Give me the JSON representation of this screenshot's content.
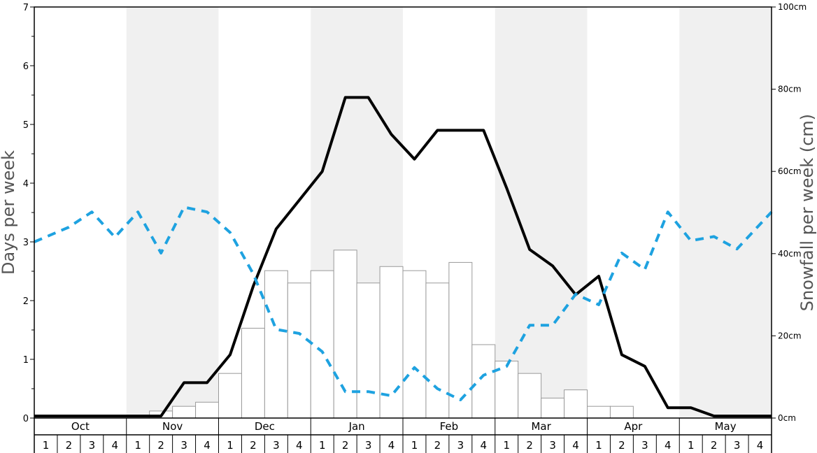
{
  "chart_data": {
    "type": "bar",
    "ylabel_left": "Days per week",
    "ylabel_right": "Snowfall per week (cm)",
    "left_axis": {
      "range": [
        0,
        7
      ],
      "ticks": [
        0,
        1,
        2,
        3,
        4,
        5,
        6,
        7
      ]
    },
    "right_axis": {
      "range": [
        0,
        100
      ],
      "tick_values": [
        0,
        20,
        40,
        60,
        80,
        100
      ],
      "tick_labels": [
        "0cm",
        "20cm",
        "40cm",
        "60cm",
        "80cm",
        "100cm"
      ]
    },
    "months": [
      "Oct",
      "Nov",
      "Dec",
      "Jan",
      "Feb",
      "Mar",
      "Apr",
      "May"
    ],
    "week_labels": [
      "1",
      "2",
      "3",
      "4"
    ],
    "shaded_months": [
      "Nov",
      "Jan",
      "Mar",
      "May"
    ],
    "series": [
      {
        "name": "",
        "type": "bar",
        "axis": "left",
        "color": "#ffffff",
        "stroke": "#9a9a9a",
        "values": [
          0,
          0,
          0,
          0,
          0,
          0.12,
          0.2,
          0.27,
          0.76,
          1.53,
          2.51,
          2.3,
          2.51,
          2.86,
          2.3,
          2.58,
          2.51,
          2.3,
          2.65,
          1.25,
          0.97,
          0.76,
          0.34,
          0.48,
          0.2,
          0.2,
          0,
          0,
          0,
          0,
          0,
          0
        ]
      },
      {
        "name": "",
        "type": "line",
        "axis": "right",
        "color": "#000000",
        "values": [
          0.5,
          0.5,
          0.5,
          0.5,
          0.5,
          0.5,
          8.6,
          8.6,
          15.4,
          32,
          46,
          53,
          60,
          78,
          78,
          69,
          63,
          70,
          70,
          70,
          56,
          41,
          37,
          30,
          34.5,
          15.4,
          12.6,
          2.5,
          2.5,
          0.5,
          0.5,
          0.5
        ]
      },
      {
        "name": "",
        "type": "line",
        "axis": "left",
        "color": "#1ea2e0",
        "dashed": true,
        "values": [
          3.0,
          3.25,
          3.51,
          3.08,
          3.51,
          2.81,
          3.59,
          3.51,
          3.16,
          2.46,
          1.51,
          1.44,
          1.13,
          0.45,
          0.45,
          0.38,
          0.86,
          0.5,
          0.31,
          0.73,
          0.88,
          1.58,
          1.58,
          2.11,
          1.93,
          2.81,
          2.53,
          3.51,
          3.02,
          3.09,
          2.88,
          3.51
        ]
      }
    ],
    "grid": false,
    "legend": "none"
  }
}
